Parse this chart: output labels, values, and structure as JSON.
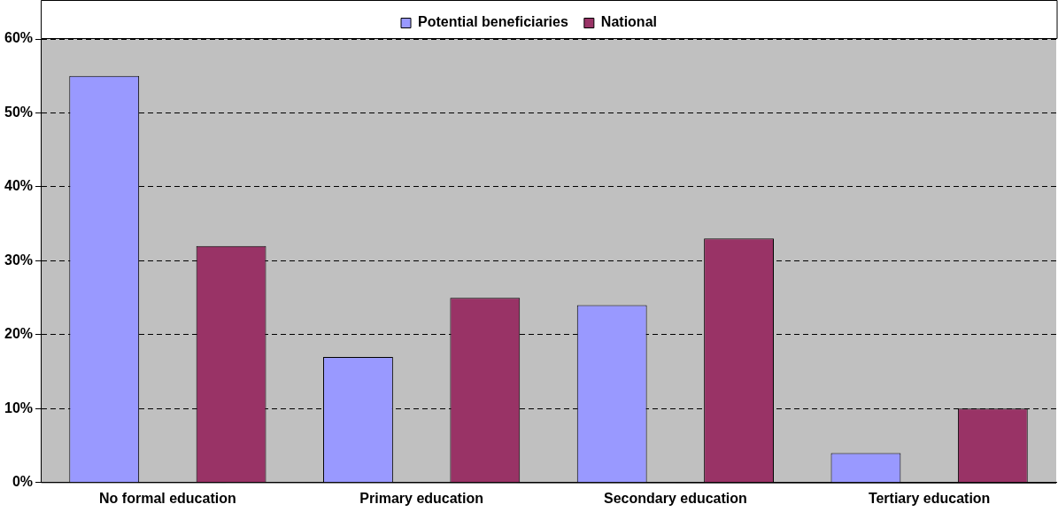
{
  "chart_data": {
    "type": "bar",
    "categories": [
      "No formal education",
      "Primary education",
      "Secondary education",
      "Tertiary education"
    ],
    "series": [
      {
        "name": "Potential beneficiaries",
        "color": "#9999ff",
        "values": [
          55,
          17,
          24,
          4
        ]
      },
      {
        "name": "National",
        "color": "#993366",
        "values": [
          32,
          25,
          33,
          10
        ]
      }
    ],
    "ylim": [
      0,
      60
    ],
    "yticks": [
      {
        "value": 0,
        "label": "0%"
      },
      {
        "value": 10,
        "label": "10%"
      },
      {
        "value": 20,
        "label": "20%"
      },
      {
        "value": 30,
        "label": "30%"
      },
      {
        "value": 40,
        "label": "40%"
      },
      {
        "value": 50,
        "label": "50%"
      },
      {
        "value": 60,
        "label": "60%"
      }
    ],
    "grid": "y",
    "legend": "top"
  }
}
